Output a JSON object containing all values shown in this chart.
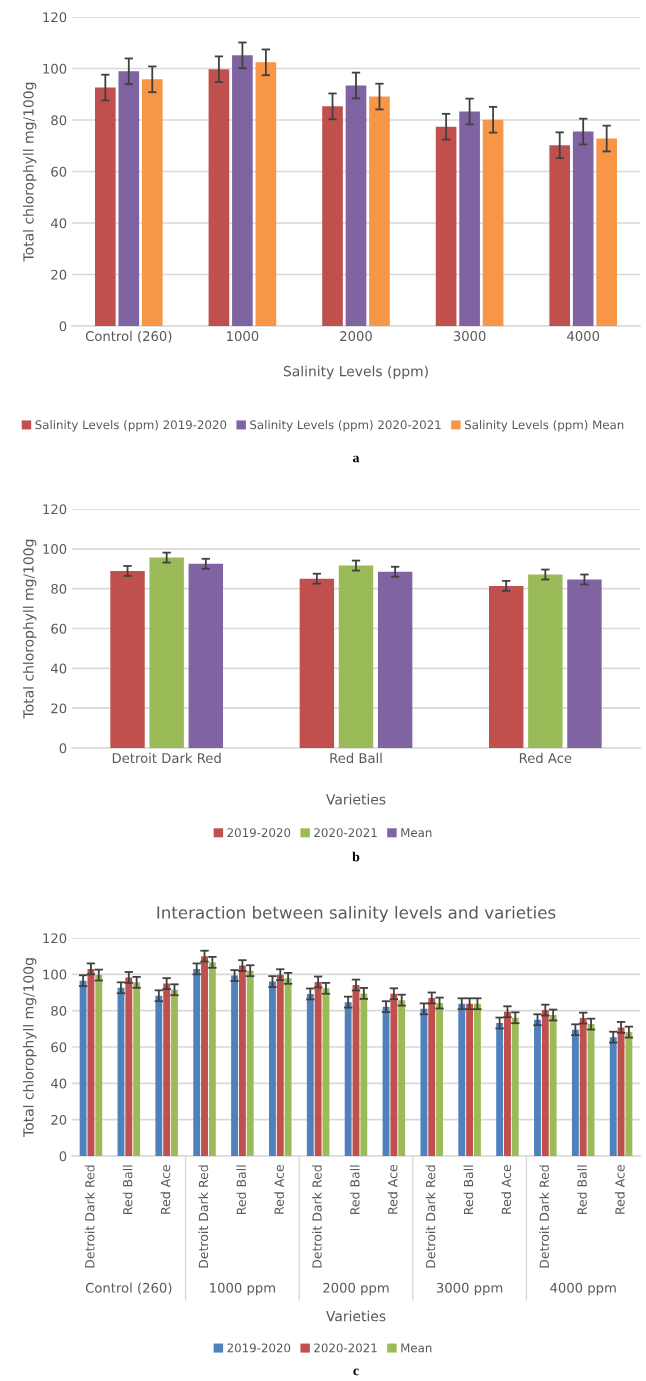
{
  "chart_data": [
    {
      "type": "bar",
      "xlabel": "Salinity Levels (ppm)",
      "ylabel": "Total chlorophyll mg/100g",
      "categories": [
        "Control (260)",
        "1000",
        "2000",
        "3000",
        "4000"
      ],
      "series": [
        {
          "name": "Salinity Levels (ppm) 2019-2020",
          "color": "#c0504d",
          "values": [
            92.6,
            99.7,
            85.3,
            77.4,
            70.2
          ],
          "errors": [
            5,
            5,
            5,
            5,
            5
          ]
        },
        {
          "name": "Salinity Levels (ppm) 2020-2021",
          "color": "#8064a2",
          "values": [
            98.9,
            105.1,
            93.4,
            83.3,
            75.5
          ],
          "errors": [
            5,
            5,
            5,
            5,
            5
          ]
        },
        {
          "name": "Salinity Levels (ppm) Mean",
          "color": "#f79646",
          "values": [
            95.8,
            102.4,
            89.1,
            80.1,
            72.8
          ],
          "errors": [
            5,
            5,
            5,
            5,
            5
          ]
        }
      ],
      "ylim": [
        0,
        120
      ],
      "yticks": [
        0,
        20,
        40,
        60,
        80,
        100,
        120
      ],
      "grid": "y",
      "legend": "bottom",
      "annotations": [
        "a"
      ]
    },
    {
      "type": "bar",
      "xlabel": "Varieties",
      "ylabel": "Total chlorophyll mg/100g",
      "categories": [
        "Detroit Dark Red",
        "Red Ball",
        "Red Ace"
      ],
      "series": [
        {
          "name": "2019-2020",
          "color": "#c0504d",
          "values": [
            88.9,
            85.0,
            81.4
          ],
          "errors": [
            2.5,
            2.5,
            2.5
          ]
        },
        {
          "name": "2020-2021",
          "color": "#9bbb59",
          "values": [
            95.6,
            91.6,
            87.1
          ],
          "errors": [
            2.5,
            2.5,
            2.5
          ]
        },
        {
          "name": "Mean",
          "color": "#8064a2",
          "values": [
            92.5,
            88.5,
            84.6
          ],
          "errors": [
            2.5,
            2.5,
            2.5
          ]
        }
      ],
      "ylim": [
        0,
        120
      ],
      "yticks": [
        0,
        20,
        40,
        60,
        80,
        100,
        120
      ],
      "grid": "y",
      "legend": "bottom",
      "annotations": [
        "b"
      ]
    },
    {
      "type": "bar",
      "title": "Interaction between salinity levels and varieties",
      "xlabel": "Varieties",
      "ylabel": "Total chlorophyll mg/100g",
      "categories": [
        "Detroit Dark Red",
        "Red Ball",
        "Red Ace",
        "Detroit Dark Red",
        "Red Ball",
        "Red Ace",
        "Detroit Dark Red",
        "Red Ball",
        "Red Ace",
        "Detroit Dark Red",
        "Red Ball",
        "Red Ace",
        "Detroit Dark Red",
        "Red Ball",
        "Red Ace"
      ],
      "series": [
        {
          "name": "2019-2020",
          "color": "#4f81bd",
          "values": [
            96.5,
            92.6,
            88.2,
            103.0,
            99.3,
            96.0,
            89.2,
            84.7,
            82.2,
            81.0,
            83.8,
            73.2,
            75.0,
            69.5,
            65.4
          ],
          "errors": [
            3,
            3,
            3,
            3,
            3,
            3,
            3,
            3,
            3,
            3,
            3,
            3,
            3,
            3,
            3
          ]
        },
        {
          "name": "2020-2021",
          "color": "#c0504d",
          "values": [
            103.0,
            98.3,
            94.9,
            110.0,
            104.8,
            99.8,
            95.8,
            94.1,
            89.3,
            87.0,
            83.8,
            79.4,
            80.3,
            75.9,
            70.8
          ],
          "errors": [
            3,
            3,
            3,
            3,
            3,
            3,
            3,
            3,
            3,
            3,
            3,
            3,
            3,
            3,
            3
          ]
        },
        {
          "name": "Mean",
          "color": "#9bbb59",
          "values": [
            99.6,
            95.6,
            91.5,
            106.6,
            102.0,
            97.8,
            92.3,
            89.5,
            85.8,
            84.2,
            83.8,
            76.1,
            77.6,
            72.6,
            68.2
          ],
          "errors": [
            3,
            3,
            3,
            3,
            3,
            3,
            3,
            3,
            3,
            3,
            3,
            3,
            3,
            3,
            3
          ]
        }
      ],
      "ylim": [
        0,
        120
      ],
      "yticks": [
        0,
        20,
        40,
        60,
        80,
        100,
        120
      ],
      "grid": "y",
      "legend": "bottom",
      "annotations": [
        "Control (260)",
        "1000 ppm",
        "2000 ppm",
        "3000 ppm",
        "4000 ppm",
        "c"
      ]
    }
  ]
}
